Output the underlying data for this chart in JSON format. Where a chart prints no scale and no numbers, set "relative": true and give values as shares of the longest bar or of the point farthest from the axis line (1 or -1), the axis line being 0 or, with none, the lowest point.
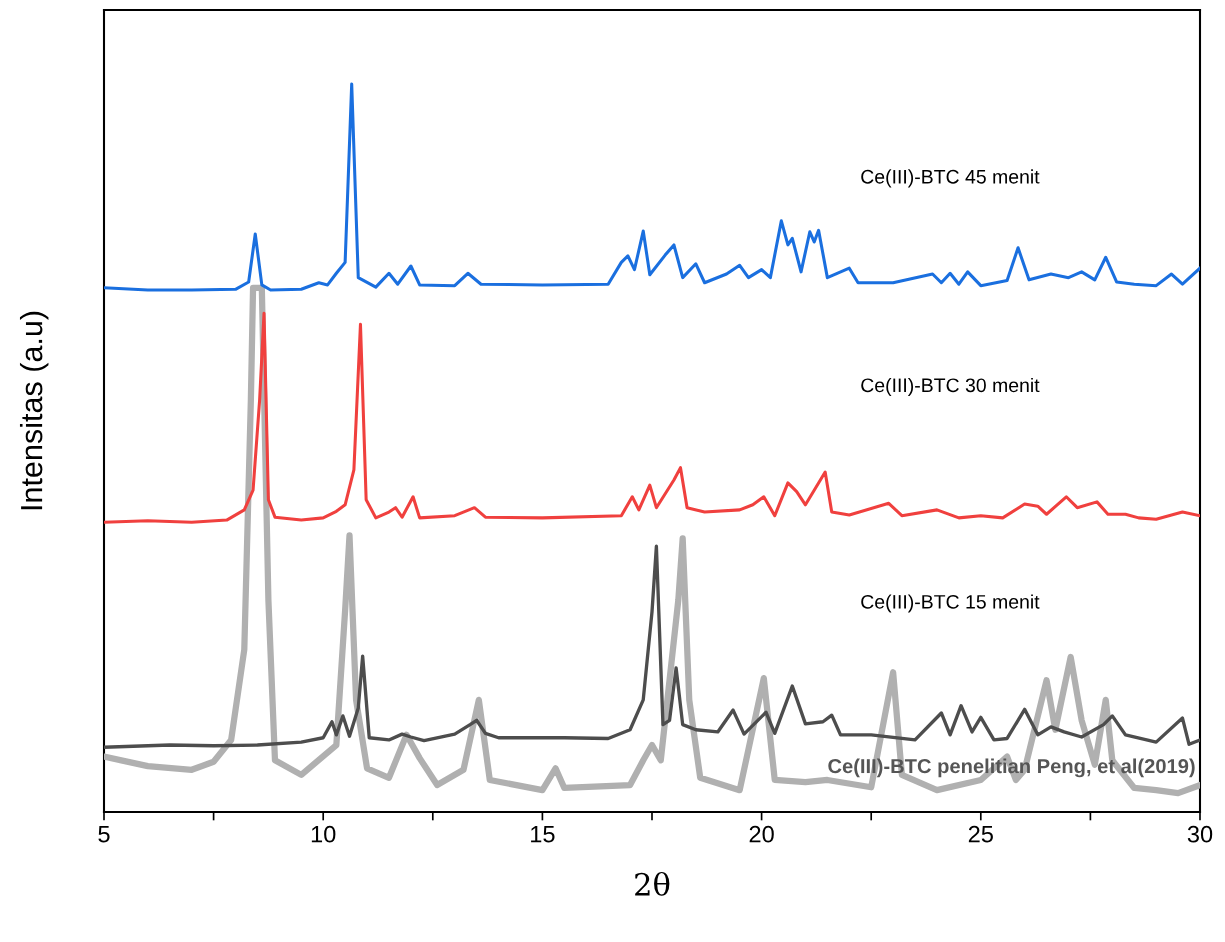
{
  "chart_data": {
    "type": "line",
    "relative": true,
    "xlabel": "2θ",
    "ylabel": "Intensitas (a.u)",
    "xlim": [
      5,
      30
    ],
    "xticks": [
      5,
      {
        "value": 7.5,
        "label": null
      },
      10,
      {
        "value": 12.5,
        "label": null
      },
      15,
      {
        "value": 17.5,
        "label": null
      },
      20,
      {
        "value": 22.5,
        "label": null
      },
      25,
      {
        "value": 27.5,
        "label": null
      },
      30
    ],
    "annotations": [
      "Ce(III)-BTC 45 menit",
      "Ce(III)-BTC 30 menit",
      "Ce(III)-BTC 15 menit",
      "Ce(III)-BTC penelitian Peng, et al(2019)"
    ],
    "tick_labels": "x",
    "grid": false,
    "legend": false,
    "marker": "none",
    "line_style": "solid",
    "series": [
      {
        "color": "#1a6fdf",
        "x": [
          5.0,
          6.0,
          7.0,
          8.0,
          8.3,
          8.45,
          8.6,
          8.8,
          9.5,
          9.9,
          10.1,
          10.3,
          10.5,
          10.65,
          10.8,
          11.2,
          11.5,
          11.7,
          12.0,
          12.2,
          13.0,
          13.3,
          13.6,
          15.0,
          16.5,
          16.8,
          16.95,
          17.1,
          17.3,
          17.45,
          17.8,
          18.0,
          18.2,
          18.5,
          18.7,
          19.2,
          19.5,
          19.7,
          20.0,
          20.2,
          20.45,
          20.6,
          20.7,
          20.9,
          21.1,
          21.2,
          21.3,
          21.5,
          22.0,
          22.2,
          23.0,
          23.9,
          24.1,
          24.3,
          24.5,
          24.7,
          25.0,
          25.6,
          25.85,
          26.1,
          26.6,
          27.0,
          27.3,
          27.6,
          27.85,
          28.1,
          28.5,
          29.0,
          29.35,
          29.6,
          30.0
        ],
        "values": [
          0.72,
          0.717,
          0.717,
          0.718,
          0.728,
          0.794,
          0.724,
          0.717,
          0.718,
          0.727,
          0.724,
          0.74,
          0.755,
          1.0,
          0.734,
          0.721,
          0.74,
          0.725,
          0.75,
          0.724,
          0.723,
          0.74,
          0.725,
          0.724,
          0.725,
          0.755,
          0.764,
          0.745,
          0.798,
          0.738,
          0.765,
          0.779,
          0.734,
          0.753,
          0.727,
          0.739,
          0.751,
          0.734,
          0.745,
          0.734,
          0.812,
          0.779,
          0.788,
          0.742,
          0.797,
          0.783,
          0.799,
          0.734,
          0.747,
          0.727,
          0.727,
          0.739,
          0.727,
          0.74,
          0.725,
          0.742,
          0.723,
          0.73,
          0.775,
          0.731,
          0.739,
          0.734,
          0.742,
          0.731,
          0.762,
          0.728,
          0.725,
          0.723,
          0.739,
          0.725,
          0.747
        ]
      },
      {
        "color": "#f0403e",
        "x": [
          5.0,
          6.0,
          7.0,
          7.8,
          8.2,
          8.4,
          8.55,
          8.65,
          8.75,
          8.9,
          9.5,
          10.0,
          10.3,
          10.5,
          10.7,
          10.85,
          10.98,
          11.2,
          11.5,
          11.65,
          11.8,
          12.05,
          12.2,
          13.0,
          13.45,
          13.7,
          15.0,
          16.8,
          17.05,
          17.2,
          17.45,
          17.6,
          18.0,
          18.15,
          18.3,
          18.7,
          19.5,
          19.8,
          20.05,
          20.3,
          20.6,
          20.8,
          21.0,
          21.2,
          21.45,
          21.6,
          22.0,
          22.9,
          23.2,
          24.0,
          24.5,
          25.0,
          25.5,
          26.0,
          26.3,
          26.5,
          26.95,
          27.2,
          27.65,
          27.9,
          28.3,
          28.6,
          29.0,
          29.6,
          30.0
        ],
        "values": [
          0.398,
          0.4,
          0.398,
          0.401,
          0.415,
          0.442,
          0.566,
          0.685,
          0.429,
          0.405,
          0.401,
          0.404,
          0.413,
          0.422,
          0.47,
          0.67,
          0.429,
          0.404,
          0.412,
          0.418,
          0.405,
          0.433,
          0.404,
          0.407,
          0.418,
          0.405,
          0.404,
          0.407,
          0.433,
          0.415,
          0.449,
          0.418,
          0.456,
          0.473,
          0.418,
          0.412,
          0.415,
          0.422,
          0.433,
          0.407,
          0.452,
          0.44,
          0.422,
          0.442,
          0.467,
          0.412,
          0.408,
          0.424,
          0.407,
          0.415,
          0.404,
          0.407,
          0.404,
          0.423,
          0.42,
          0.409,
          0.433,
          0.418,
          0.426,
          0.409,
          0.409,
          0.404,
          0.402,
          0.412,
          0.407
        ]
      },
      {
        "color": "#4d4d4d",
        "x": [
          5.0,
          6.5,
          7.5,
          8.5,
          9.5,
          10.0,
          10.2,
          10.3,
          10.45,
          10.6,
          10.8,
          10.9,
          11.05,
          11.5,
          11.8,
          12.0,
          12.3,
          13.0,
          13.35,
          13.5,
          13.7,
          14.0,
          15.5,
          16.5,
          17.0,
          17.3,
          17.5,
          17.6,
          17.75,
          17.9,
          18.05,
          18.2,
          18.5,
          19.0,
          19.35,
          19.6,
          20.1,
          20.3,
          20.7,
          21.0,
          21.4,
          21.6,
          21.8,
          22.5,
          23.5,
          24.1,
          24.3,
          24.55,
          24.8,
          25.0,
          25.3,
          25.6,
          26.0,
          26.3,
          26.6,
          26.9,
          27.3,
          27.8,
          28.0,
          28.3,
          29.0,
          29.6,
          29.75,
          30.0
        ],
        "values": [
          0.089,
          0.092,
          0.091,
          0.092,
          0.096,
          0.102,
          0.124,
          0.106,
          0.132,
          0.104,
          0.143,
          0.214,
          0.102,
          0.099,
          0.107,
          0.103,
          0.098,
          0.107,
          0.12,
          0.126,
          0.108,
          0.102,
          0.102,
          0.101,
          0.113,
          0.154,
          0.275,
          0.365,
          0.12,
          0.126,
          0.198,
          0.12,
          0.113,
          0.11,
          0.14,
          0.107,
          0.137,
          0.108,
          0.173,
          0.121,
          0.124,
          0.133,
          0.106,
          0.106,
          0.099,
          0.136,
          0.106,
          0.146,
          0.11,
          0.13,
          0.099,
          0.101,
          0.141,
          0.106,
          0.117,
          0.11,
          0.103,
          0.12,
          0.132,
          0.106,
          0.096,
          0.129,
          0.093,
          0.099
        ]
      },
      {
        "color": "#b0b0b0",
        "x": [
          5.0,
          6.0,
          7.0,
          7.5,
          7.9,
          8.2,
          8.35,
          8.4,
          8.6,
          8.75,
          8.9,
          9.5,
          10.3,
          10.5,
          10.6,
          10.75,
          11.0,
          11.5,
          11.9,
          12.2,
          12.6,
          13.2,
          13.55,
          13.8,
          15.0,
          15.3,
          15.5,
          17.0,
          17.3,
          17.5,
          17.7,
          18.1,
          18.2,
          18.35,
          18.6,
          19.5,
          20.05,
          20.3,
          21.0,
          21.5,
          22.5,
          23.0,
          23.2,
          24.0,
          25.0,
          25.6,
          25.8,
          26.0,
          26.5,
          26.7,
          27.05,
          27.3,
          27.6,
          27.85,
          28.0,
          28.5,
          29.0,
          29.5,
          30.0
        ],
        "values": [
          0.076,
          0.063,
          0.058,
          0.069,
          0.099,
          0.223,
          0.566,
          0.72,
          0.72,
          0.291,
          0.071,
          0.051,
          0.092,
          0.277,
          0.38,
          0.154,
          0.06,
          0.047,
          0.106,
          0.074,
          0.037,
          0.058,
          0.154,
          0.044,
          0.03,
          0.06,
          0.033,
          0.037,
          0.071,
          0.092,
          0.071,
          0.291,
          0.376,
          0.154,
          0.047,
          0.03,
          0.184,
          0.044,
          0.041,
          0.044,
          0.034,
          0.192,
          0.051,
          0.03,
          0.044,
          0.076,
          0.044,
          0.058,
          0.181,
          0.113,
          0.213,
          0.126,
          0.065,
          0.154,
          0.071,
          0.033,
          0.03,
          0.026,
          0.037
        ]
      }
    ]
  }
}
